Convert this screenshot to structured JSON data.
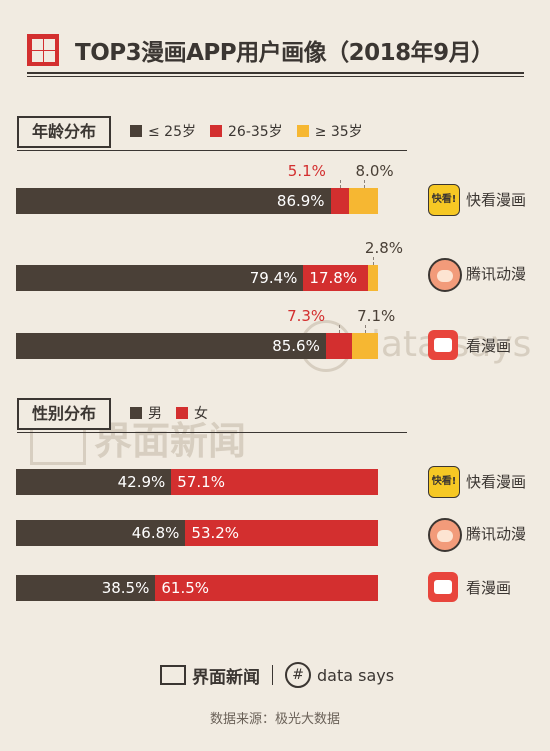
{
  "title": "TOP3漫画APP用户画像（2018年9月）",
  "colors": {
    "dark": "#4a4037",
    "red": "#d32f2f",
    "yellow": "#f6b732",
    "bg": "#f1ebe1"
  },
  "age_section": {
    "label": "年龄分布",
    "legend": [
      "≤ 25岁",
      "26-35岁",
      "≥ 35岁"
    ]
  },
  "gender_section": {
    "label": "性别分布",
    "legend": [
      "男",
      "女"
    ]
  },
  "apps": [
    {
      "name": "快看漫画",
      "icon": "kuaikan-logo-icon",
      "icon_text": "快看!"
    },
    {
      "name": "腾讯动漫",
      "icon": "tencent-comic-avatar-icon"
    },
    {
      "name": "看漫画",
      "icon": "kanmanhua-logo-icon"
    }
  ],
  "chart_data": [
    {
      "type": "bar",
      "stacked": true,
      "orientation": "horizontal",
      "categories": [
        "快看漫画",
        "腾讯动漫",
        "看漫画"
      ],
      "series": [
        {
          "name": "≤ 25岁",
          "values": [
            86.9,
            79.4,
            85.6
          ],
          "labels": [
            "86.9%",
            "79.4%",
            "85.6%"
          ],
          "color": "#4a4037"
        },
        {
          "name": "26-35岁",
          "values": [
            5.1,
            17.8,
            7.3
          ],
          "labels": [
            "5.1%",
            "17.8%",
            "7.3%"
          ],
          "color": "#d32f2f"
        },
        {
          "name": "≥ 35岁",
          "values": [
            8.0,
            2.8,
            7.1
          ],
          "labels": [
            "8.0%",
            "2.8%",
            "7.1%"
          ],
          "color": "#f6b732"
        }
      ],
      "xlim": [
        0,
        100
      ],
      "legend": "top-left"
    },
    {
      "type": "bar",
      "stacked": true,
      "orientation": "horizontal",
      "categories": [
        "快看漫画",
        "腾讯动漫",
        "看漫画"
      ],
      "series": [
        {
          "name": "男",
          "values": [
            42.9,
            46.8,
            38.5
          ],
          "labels": [
            "42.9%",
            "46.8%",
            "38.5%"
          ],
          "color": "#4a4037"
        },
        {
          "name": "女",
          "values": [
            57.1,
            53.2,
            61.5
          ],
          "labels": [
            "57.1%",
            "53.2%",
            "61.5%"
          ],
          "color": "#d32f2f"
        }
      ],
      "xlim": [
        0,
        100
      ],
      "legend": "top-left"
    }
  ],
  "watermark": {
    "jiemian": "界面新闻",
    "datasays": "data says"
  },
  "footer": {
    "brand": "界面新闻",
    "datasays": "data says",
    "source": "数据来源：极光大数据"
  }
}
